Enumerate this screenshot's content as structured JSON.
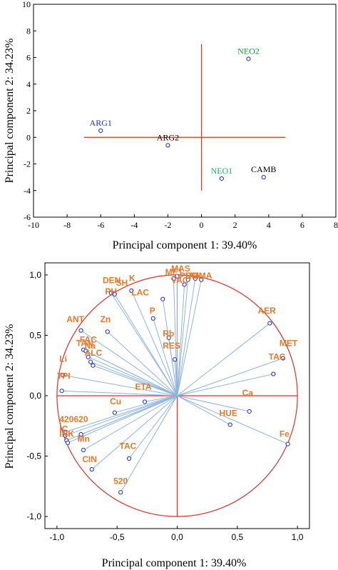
{
  "colors": {
    "frame": "#000000",
    "axis_lines": "#e0302a",
    "marker": "#1a2ad0",
    "loading_line": "#8fb4e0",
    "var_label": "#e8792a",
    "blue": "#1f2bd0",
    "green": "#1e9a3a",
    "teal": "#2aa86a",
    "black": "#000000"
  },
  "chart_data": [
    {
      "type": "scatter",
      "title": "",
      "xlabel": "Principal component 1: 39.40%",
      "ylabel": "Principal component 2: 34.23%",
      "xlim": [
        -10,
        8
      ],
      "ylim": [
        -6,
        10
      ],
      "xticks": [
        "-10",
        "-8",
        "-6",
        "-4",
        "-2",
        "0",
        "2",
        "4",
        "6",
        "8"
      ],
      "yticks": [
        "-6",
        "-4",
        "-2",
        "0",
        "2",
        "4",
        "6",
        "8",
        "10"
      ],
      "grid": false,
      "points": [
        {
          "label": "ARG1",
          "x": -6.0,
          "y": 0.5,
          "color": "#1f2bd0"
        },
        {
          "label": "ARG2",
          "x": -2.0,
          "y": -0.6,
          "color": "#000000"
        },
        {
          "label": "NEO2",
          "x": 2.8,
          "y": 5.9,
          "color": "#1e9a3a"
        },
        {
          "label": "NEO1",
          "x": 1.2,
          "y": -3.1,
          "color": "#2aa86a"
        },
        {
          "label": "CAMB",
          "x": 3.7,
          "y": -3.0,
          "color": "#000000"
        }
      ],
      "reference_lines": {
        "horizontal": {
          "y": 0,
          "x_from": -7,
          "x_to": 5
        },
        "vertical": {
          "x": 0,
          "y_from": -4,
          "y_to": 7
        }
      }
    },
    {
      "type": "scatter",
      "title": "",
      "xlabel": "Principal component 1: 39.40%",
      "ylabel": "Principal component 2: 34.23%",
      "xlim": [
        -1.1,
        1.1
      ],
      "ylim": [
        -1.1,
        1.1
      ],
      "xticks": [
        "-1,0",
        "-0,5",
        "0,0",
        "0,5",
        "1,0"
      ],
      "yticks": [
        "-1,0",
        "-0,5",
        "0,0",
        "0,5",
        "1,0"
      ],
      "grid": false,
      "unit_circle": true,
      "points": [
        {
          "label": "MET",
          "x": -0.03,
          "y": 0.97
        },
        {
          "label": "MAS",
          "x": 0.0,
          "y": 0.99
        },
        {
          "label": "VAC",
          "x": 0.06,
          "y": 0.92
        },
        {
          "label": "PRO",
          "x": 0.09,
          "y": 0.96
        },
        {
          "label": "IAA",
          "x": 0.15,
          "y": 0.97
        },
        {
          "label": "MMA",
          "x": 0.2,
          "y": 0.96
        },
        {
          "label": "DEN",
          "x": -0.55,
          "y": 0.85
        },
        {
          "label": "PH",
          "x": -0.52,
          "y": 0.84
        },
        {
          "label": "K",
          "x": -0.38,
          "y": 0.87
        },
        {
          "label": "LAC",
          "x": -0.12,
          "y": 0.8
        },
        {
          "label": "P",
          "x": -0.2,
          "y": 0.64
        },
        {
          "label": "Rb",
          "x": -0.07,
          "y": 0.48
        },
        {
          "label": "RES",
          "x": -0.02,
          "y": 0.3
        },
        {
          "label": "AER",
          "x": 0.77,
          "y": 0.6
        },
        {
          "label": "MET",
          "x": 0.88,
          "y": 0.31
        },
        {
          "label": "TAC",
          "x": 0.8,
          "y": 0.18
        },
        {
          "label": "ANT",
          "x": -0.8,
          "y": 0.54
        },
        {
          "label": "Zn",
          "x": -0.58,
          "y": 0.53
        },
        {
          "label": "FAC",
          "x": -0.78,
          "y": 0.38
        },
        {
          "label": "TAN",
          "x": -0.76,
          "y": 0.37
        },
        {
          "label": "Na",
          "x": -0.74,
          "y": 0.32
        },
        {
          "label": "ALC",
          "x": -0.72,
          "y": 0.28
        },
        {
          "label": "Li",
          "x": -0.7,
          "y": 0.25
        },
        {
          "label": "TPI",
          "x": -0.95,
          "y": 0.17
        },
        {
          "label": "TPI",
          "x": -0.96,
          "y": 0.04
        },
        {
          "label": "ETA",
          "x": -0.27,
          "y": -0.05
        },
        {
          "label": "Cu",
          "x": -0.52,
          "y": -0.14
        },
        {
          "label": "Ca",
          "x": 0.6,
          "y": -0.13
        },
        {
          "label": "HUE",
          "x": 0.44,
          "y": -0.24
        },
        {
          "label": "Fe",
          "x": 0.92,
          "y": -0.4
        },
        {
          "label": "420",
          "x": -0.93,
          "y": -0.3
        },
        {
          "label": "620",
          "x": -0.8,
          "y": -0.32
        },
        {
          "label": "IC",
          "x": -0.93,
          "y": -0.33
        },
        {
          "label": "Mn",
          "x": -0.92,
          "y": -0.37
        },
        {
          "label": "INK",
          "x": -0.91,
          "y": -0.39
        },
        {
          "label": "CIN",
          "x": -0.78,
          "y": -0.45
        },
        {
          "label": "TAC",
          "x": -0.4,
          "y": -0.52
        },
        {
          "label": "CIN",
          "x": -0.71,
          "y": -0.61
        },
        {
          "label": "520",
          "x": -0.47,
          "y": -0.8
        }
      ],
      "labels": [
        {
          "text": "MET",
          "x": -0.1,
          "y": 1.0
        },
        {
          "text": "MAS",
          "x": -0.05,
          "y": 1.03
        },
        {
          "text": "VAC",
          "x": -0.05,
          "y": 0.93
        },
        {
          "text": "PRO",
          "x": 0.02,
          "y": 0.97
        },
        {
          "text": "IAA",
          "x": 0.07,
          "y": 0.97
        },
        {
          "text": "MMA",
          "x": 0.12,
          "y": 0.97
        },
        {
          "text": "DEN",
          "x": -0.62,
          "y": 0.93
        },
        {
          "text": "SH",
          "x": -0.51,
          "y": 0.91
        },
        {
          "text": "PH",
          "x": -0.6,
          "y": 0.84
        },
        {
          "text": "K",
          "x": -0.4,
          "y": 0.95
        },
        {
          "text": "LAC",
          "x": -0.38,
          "y": 0.83
        },
        {
          "text": "P",
          "x": -0.23,
          "y": 0.68
        },
        {
          "text": "Rb",
          "x": -0.12,
          "y": 0.49
        },
        {
          "text": "RES",
          "x": -0.12,
          "y": 0.39
        },
        {
          "text": "AER",
          "x": 0.67,
          "y": 0.68
        },
        {
          "text": "MET",
          "x": 0.85,
          "y": 0.41
        },
        {
          "text": "TAC",
          "x": 0.76,
          "y": 0.3
        },
        {
          "text": "ANT",
          "x": -0.92,
          "y": 0.61
        },
        {
          "text": "Zn",
          "x": -0.64,
          "y": 0.61
        },
        {
          "text": "FAC",
          "x": -0.81,
          "y": 0.44
        },
        {
          "text": "TAN",
          "x": -0.84,
          "y": 0.41
        },
        {
          "text": "Na",
          "x": -0.77,
          "y": 0.39
        },
        {
          "text": "ALC",
          "x": -0.77,
          "y": 0.33
        },
        {
          "text": "Li",
          "x": -0.98,
          "y": 0.28
        },
        {
          "text": "TPI",
          "x": -1.0,
          "y": 0.14
        },
        {
          "text": "ETA",
          "x": -0.35,
          "y": 0.05
        },
        {
          "text": "Cu",
          "x": -0.56,
          "y": -0.07
        },
        {
          "text": "Ca",
          "x": 0.54,
          "y": 0.0
        },
        {
          "text": "HUE",
          "x": 0.35,
          "y": -0.17
        },
        {
          "text": "Fe",
          "x": 0.85,
          "y": -0.34
        },
        {
          "text": "420",
          "x": -0.98,
          "y": -0.22
        },
        {
          "text": "620",
          "x": -0.86,
          "y": -0.22
        },
        {
          "text": "IC",
          "x": -0.98,
          "y": -0.3
        },
        {
          "text": "INK",
          "x": -0.98,
          "y": -0.34
        },
        {
          "text": "Mn",
          "x": -0.83,
          "y": -0.38
        },
        {
          "text": "CIN",
          "x": -0.79,
          "y": -0.55
        },
        {
          "text": "TAC",
          "x": -0.48,
          "y": -0.44
        },
        {
          "text": "520",
          "x": -0.53,
          "y": -0.73
        }
      ]
    }
  ]
}
